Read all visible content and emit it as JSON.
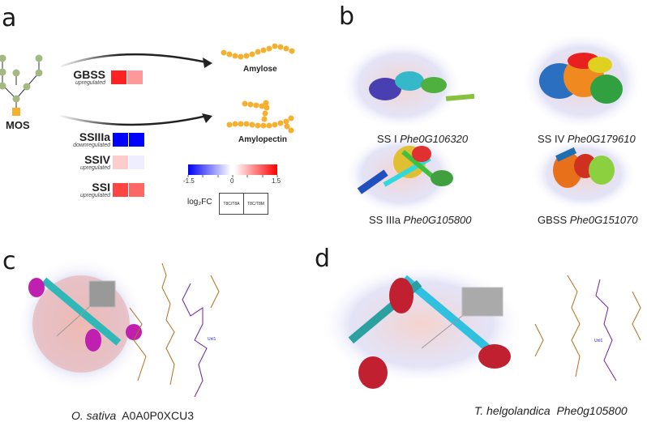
{
  "panels": {
    "a": {
      "label": "a",
      "substrate": "MOS",
      "products": {
        "amylose": "Amylose",
        "amylopectin": "Amylopectin"
      },
      "genes": [
        {
          "name": "GBSS",
          "regulation": "upregulated",
          "log2fc": [
            1.3,
            0.6
          ]
        },
        {
          "name": "SSIIIa",
          "regulation": "downregulated",
          "log2fc": [
            -1.5,
            -1.5
          ]
        },
        {
          "name": "SSIV",
          "regulation": "upregulated",
          "log2fc": [
            0.3,
            -0.1
          ]
        },
        {
          "name": "SSI",
          "regulation": "upregulated",
          "log2fc": [
            1.1,
            0.9
          ]
        }
      ],
      "colorbar": {
        "min": "-1.5",
        "mid": "0",
        "max": "1.5",
        "low_color": "#0000ff",
        "mid_color": "#ffffff",
        "high_color": "#ff0000"
      },
      "legend": {
        "title": "log₂FC",
        "columns": [
          "T8C/T8A",
          "T8C/T8M"
        ]
      },
      "colors": {
        "tree_node": "#a3b882",
        "root_node": "#f5b030",
        "glucose": "#f5b030"
      }
    },
    "b": {
      "label": "b",
      "structures": [
        {
          "name": "SS I",
          "id": "Phe0G106320"
        },
        {
          "name": "SS IV",
          "id": "Phe0G179610"
        },
        {
          "name": "SS IIIa",
          "id": "Phe0G105800"
        },
        {
          "name": "GBSS",
          "id": "Phe0G151070"
        }
      ]
    },
    "c": {
      "label": "c",
      "species": "O. sativa",
      "id": "A0A0P0XCU3",
      "ligand": "Unl1"
    },
    "d": {
      "label": "d",
      "species": "T. helgolandica",
      "id": "Phe0g105800",
      "ligand": "Unl1"
    }
  }
}
